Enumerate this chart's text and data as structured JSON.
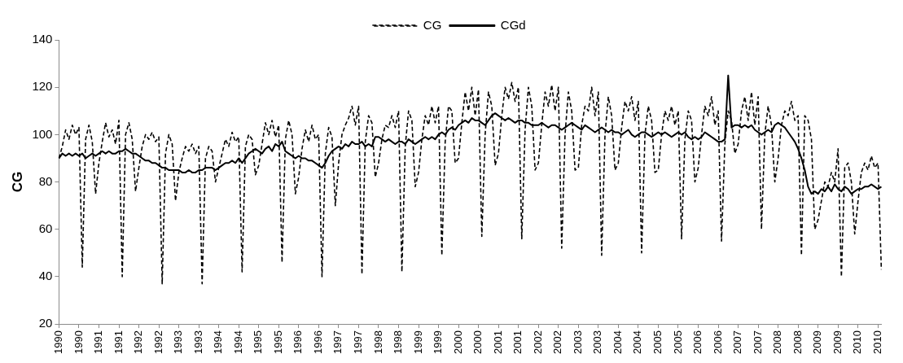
{
  "chart_data": {
    "type": "line",
    "ylabel": "CG",
    "legend": "top",
    "marker": "none",
    "ylim": [
      20,
      140
    ],
    "yticks": [
      20,
      40,
      60,
      80,
      100,
      120,
      140
    ],
    "categories": [
      "1990",
      null,
      null,
      null,
      null,
      null,
      "1990",
      null,
      null,
      null,
      null,
      null,
      "1991",
      null,
      null,
      null,
      null,
      null,
      "1991",
      null,
      null,
      null,
      null,
      null,
      "1992",
      null,
      null,
      null,
      null,
      null,
      "1992",
      null,
      null,
      null,
      null,
      null,
      "1993",
      null,
      null,
      null,
      null,
      null,
      "1993",
      null,
      null,
      null,
      null,
      null,
      "1994",
      null,
      null,
      null,
      null,
      null,
      "1994",
      null,
      null,
      null,
      null,
      null,
      "1995",
      null,
      null,
      null,
      null,
      null,
      "1995",
      null,
      null,
      null,
      null,
      null,
      "1996",
      null,
      null,
      null,
      null,
      null,
      "1996",
      null,
      null,
      null,
      null,
      null,
      "1997",
      null,
      null,
      null,
      null,
      null,
      "1997",
      null,
      null,
      null,
      null,
      null,
      "1998",
      null,
      null,
      null,
      null,
      null,
      "1998",
      null,
      null,
      null,
      null,
      null,
      "1999",
      null,
      null,
      null,
      null,
      null,
      "1999",
      null,
      null,
      null,
      null,
      null,
      "2000",
      null,
      null,
      null,
      null,
      null,
      "2000",
      null,
      null,
      null,
      null,
      null,
      "2001",
      null,
      null,
      null,
      null,
      null,
      "2001",
      null,
      null,
      null,
      null,
      null,
      "2002",
      null,
      null,
      null,
      null,
      null,
      "2002",
      null,
      null,
      null,
      null,
      null,
      "2003",
      null,
      null,
      null,
      null,
      null,
      "2003",
      null,
      null,
      null,
      null,
      null,
      "2004",
      null,
      null,
      null,
      null,
      null,
      "2004",
      null,
      null,
      null,
      null,
      null,
      "2005",
      null,
      null,
      null,
      null,
      null,
      "2005",
      null,
      null,
      null,
      null,
      null,
      "2006",
      null,
      null,
      null,
      null,
      null,
      "2006",
      null,
      null,
      null,
      null,
      null,
      "2007",
      null,
      null,
      null,
      null,
      null,
      "2007",
      null,
      null,
      null,
      null,
      null,
      "2008",
      null,
      null,
      null,
      null,
      null,
      "2008",
      null,
      null,
      null,
      null,
      null,
      "2009",
      null,
      null,
      null,
      null,
      null,
      "2009",
      null,
      null,
      null,
      null,
      null,
      "2010",
      null,
      null,
      null,
      null,
      null,
      "2010",
      null
    ],
    "series": [
      {
        "name": "CG",
        "color": "#000000",
        "line_style": "dashed",
        "values": [
          90,
          95,
          102,
          98,
          104,
          100,
          103,
          44,
          98,
          104,
          97,
          75,
          88,
          97,
          105,
          99,
          102,
          96,
          106,
          40,
          100,
          105,
          98,
          76,
          86,
          95,
          100,
          98,
          101,
          97,
          99,
          37,
          92,
          100,
          96,
          72,
          84,
          90,
          95,
          93,
          96,
          92,
          95,
          37,
          90,
          95,
          93,
          80,
          86,
          92,
          98,
          95,
          101,
          97,
          99,
          42,
          95,
          100,
          98,
          83,
          87,
          96,
          105,
          100,
          106,
          99,
          104,
          46,
          98,
          106,
          100,
          75,
          82,
          94,
          102,
          97,
          104,
          98,
          100,
          40,
          92,
          103,
          99,
          70,
          88,
          100,
          104,
          107,
          112,
          104,
          112,
          41,
          97,
          108,
          105,
          82,
          88,
          98,
          104,
          103,
          108,
          103,
          110,
          42,
          95,
          110,
          106,
          78,
          84,
          98,
          108,
          104,
          112,
          105,
          112,
          49,
          97,
          112,
          110,
          88,
          90,
          105,
          118,
          110,
          120,
          108,
          119,
          57,
          100,
          118,
          112,
          87,
          92,
          108,
          120,
          115,
          122,
          114,
          120,
          56,
          102,
          120,
          112,
          85,
          88,
          104,
          118,
          112,
          121,
          110,
          120,
          52,
          100,
          118,
          110,
          85,
          86,
          104,
          112,
          110,
          120,
          108,
          118,
          49,
          100,
          116,
          108,
          85,
          88,
          103,
          114,
          110,
          116,
          106,
          114,
          50,
          100,
          112,
          106,
          84,
          85,
          100,
          110,
          106,
          112,
          104,
          110,
          56,
          98,
          110,
          106,
          80,
          86,
          100,
          112,
          108,
          116,
          104,
          110,
          55,
          96,
          110,
          106,
          92,
          96,
          110,
          116,
          106,
          118,
          104,
          116,
          60,
          100,
          112,
          104,
          80,
          90,
          104,
          110,
          108,
          114,
          106,
          108,
          49,
          108,
          106,
          98,
          60,
          64,
          72,
          80,
          78,
          84,
          80,
          94,
          40,
          86,
          88,
          80,
          58,
          72,
          84,
          88,
          85,
          91,
          86,
          88,
          43
        ]
      },
      {
        "name": "CGd",
        "color": "#000000",
        "line_style": "solid",
        "values": [
          90,
          92,
          91,
          92,
          91,
          92,
          91,
          92,
          90,
          91,
          92,
          91,
          92,
          93,
          92,
          93,
          92,
          92,
          93,
          93,
          94,
          93,
          92,
          92,
          91,
          90,
          89,
          89,
          88,
          88,
          87,
          86,
          86,
          85,
          85,
          85,
          85,
          84,
          84,
          85,
          84,
          84,
          85,
          85,
          86,
          86,
          86,
          85,
          86,
          87,
          88,
          88,
          89,
          88,
          90,
          88,
          90,
          92,
          93,
          94,
          93,
          92,
          94,
          95,
          93,
          96,
          95,
          97,
          93,
          92,
          91,
          90,
          91,
          90,
          90,
          89,
          89,
          88,
          87,
          86,
          88,
          91,
          93,
          94,
          95,
          94,
          96,
          95,
          97,
          96,
          96,
          97,
          95,
          96,
          95,
          99,
          99,
          98,
          97,
          98,
          97,
          96,
          97,
          97,
          96,
          98,
          97,
          96,
          97,
          98,
          99,
          98,
          99,
          98,
          100,
          101,
          100,
          102,
          103,
          102,
          104,
          105,
          106,
          105,
          107,
          106,
          106,
          105,
          104,
          106,
          108,
          109,
          108,
          107,
          106,
          107,
          106,
          105,
          106,
          106,
          105,
          105,
          104,
          104,
          104,
          105,
          104,
          103,
          104,
          104,
          103,
          102,
          103,
          104,
          105,
          104,
          103,
          102,
          104,
          103,
          102,
          101,
          102,
          103,
          102,
          101,
          102,
          101,
          101,
          100,
          101,
          102,
          100,
          99,
          100,
          101,
          101,
          100,
          99,
          100,
          101,
          100,
          101,
          100,
          99,
          100,
          101,
          100,
          101,
          99,
          98,
          99,
          98,
          99,
          101,
          100,
          99,
          98,
          97,
          97,
          98,
          125,
          103,
          104,
          104,
          103,
          104,
          103,
          104,
          102,
          101,
          100,
          101,
          102,
          101,
          104,
          105,
          104,
          103,
          101,
          99,
          97,
          94,
          90,
          85,
          78,
          75,
          76,
          75,
          77,
          76,
          78,
          76,
          79,
          77,
          76,
          78,
          77,
          75,
          76,
          77,
          77,
          78,
          78,
          79,
          78,
          77,
          78
        ]
      }
    ]
  }
}
